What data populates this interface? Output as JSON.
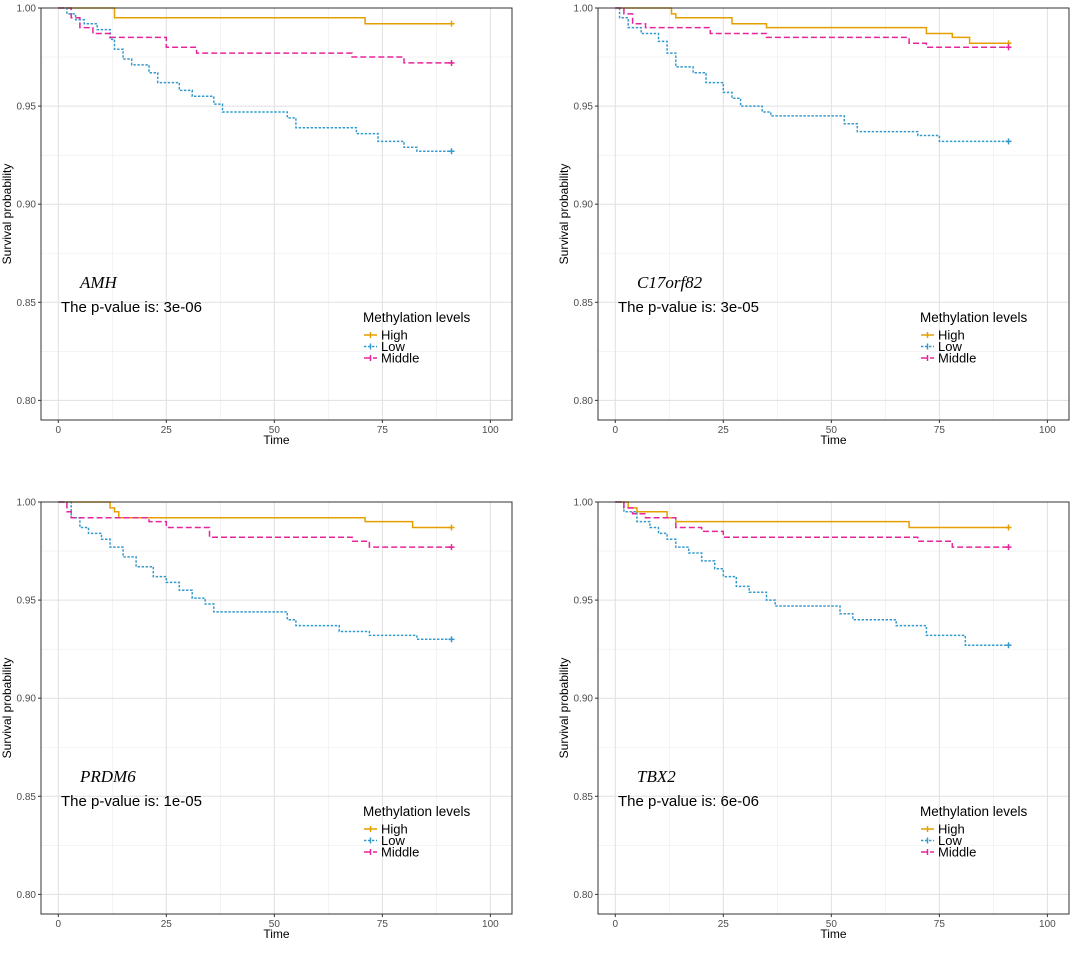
{
  "chart_data": [
    {
      "type": "line",
      "gene": "AMH",
      "pvalue_text": "The p-value is: 3e-06",
      "xlabel": "Time",
      "ylabel": "Survival probability",
      "xlim": [
        -4,
        105
      ],
      "ylim": [
        0.79,
        1.0
      ],
      "xticks": [
        0,
        25,
        50,
        75,
        100
      ],
      "yticks": [
        0.8,
        0.85,
        0.9,
        0.95,
        1.0
      ],
      "ytick_labels": [
        "0.80",
        "0.85",
        "0.90",
        "0.95",
        "1.00"
      ],
      "grid": true,
      "legend": {
        "title": "Methylation levels",
        "position": "bottom-right"
      },
      "series": [
        {
          "name": "High",
          "color": "#E69F00",
          "dash": "solid",
          "steps": [
            [
              0,
              1.0
            ],
            [
              13,
              0.995
            ],
            [
              71,
              0.992
            ]
          ],
          "end": 91
        },
        {
          "name": "Low",
          "color": "#3399CC",
          "dash": "dotted",
          "steps": [
            [
              0,
              1.0
            ],
            [
              2,
              0.997
            ],
            [
              4,
              0.994
            ],
            [
              6,
              0.992
            ],
            [
              9,
              0.989
            ],
            [
              12,
              0.984
            ],
            [
              13,
              0.979
            ],
            [
              15,
              0.974
            ],
            [
              17,
              0.971
            ],
            [
              21,
              0.967
            ],
            [
              23,
              0.962
            ],
            [
              28,
              0.958
            ],
            [
              31,
              0.955
            ],
            [
              36,
              0.951
            ],
            [
              38,
              0.947
            ],
            [
              53,
              0.944
            ],
            [
              55,
              0.939
            ],
            [
              69,
              0.936
            ],
            [
              74,
              0.932
            ],
            [
              80,
              0.929
            ],
            [
              83,
              0.927
            ]
          ],
          "end": 91
        },
        {
          "name": "Middle",
          "color": "#E6249B",
          "dash": "dashed",
          "steps": [
            [
              0,
              1.0
            ],
            [
              3,
              0.995
            ],
            [
              5,
              0.99
            ],
            [
              8,
              0.987
            ],
            [
              12,
              0.985
            ],
            [
              25,
              0.98
            ],
            [
              32,
              0.977
            ],
            [
              68,
              0.975
            ],
            [
              80,
              0.972
            ]
          ],
          "end": 91
        }
      ]
    },
    {
      "type": "line",
      "gene": "C17orf82",
      "pvalue_text": "The p-value is: 3e-05",
      "xlabel": "Time",
      "ylabel": "Survival probability",
      "xlim": [
        -4,
        105
      ],
      "ylim": [
        0.79,
        1.0
      ],
      "xticks": [
        0,
        25,
        50,
        75,
        100
      ],
      "yticks": [
        0.8,
        0.85,
        0.9,
        0.95,
        1.0
      ],
      "ytick_labels": [
        "0.80",
        "0.85",
        "0.90",
        "0.95",
        "1.00"
      ],
      "grid": true,
      "legend": {
        "title": "Methylation levels",
        "position": "bottom-right"
      },
      "series": [
        {
          "name": "High",
          "color": "#E69F00",
          "dash": "solid",
          "steps": [
            [
              0,
              1.0
            ],
            [
              13,
              0.997
            ],
            [
              14,
              0.995
            ],
            [
              27,
              0.992
            ],
            [
              35,
              0.99
            ],
            [
              72,
              0.987
            ],
            [
              78,
              0.985
            ],
            [
              82,
              0.982
            ]
          ],
          "end": 91
        },
        {
          "name": "Low",
          "color": "#3399CC",
          "dash": "dotted",
          "steps": [
            [
              0,
              1.0
            ],
            [
              1,
              0.995
            ],
            [
              3,
              0.99
            ],
            [
              6,
              0.987
            ],
            [
              10,
              0.983
            ],
            [
              12,
              0.977
            ],
            [
              14,
              0.97
            ],
            [
              18,
              0.967
            ],
            [
              21,
              0.962
            ],
            [
              25,
              0.957
            ],
            [
              27,
              0.954
            ],
            [
              29,
              0.95
            ],
            [
              34,
              0.947
            ],
            [
              36,
              0.945
            ],
            [
              53,
              0.941
            ],
            [
              56,
              0.937
            ],
            [
              70,
              0.935
            ],
            [
              75,
              0.932
            ]
          ],
          "end": 91
        },
        {
          "name": "Middle",
          "color": "#E6249B",
          "dash": "dashed",
          "steps": [
            [
              0,
              1.0
            ],
            [
              2,
              0.997
            ],
            [
              4,
              0.992
            ],
            [
              7,
              0.99
            ],
            [
              22,
              0.987
            ],
            [
              35,
              0.985
            ],
            [
              68,
              0.982
            ],
            [
              72,
              0.98
            ]
          ],
          "end": 91
        }
      ]
    },
    {
      "type": "line",
      "gene": "PRDM6",
      "pvalue_text": "The p-value is: 1e-05",
      "xlabel": "Time",
      "ylabel": "Survival probability",
      "xlim": [
        -4,
        105
      ],
      "ylim": [
        0.79,
        1.0
      ],
      "xticks": [
        0,
        25,
        50,
        75,
        100
      ],
      "yticks": [
        0.8,
        0.85,
        0.9,
        0.95,
        1.0
      ],
      "ytick_labels": [
        "0.80",
        "0.85",
        "0.90",
        "0.95",
        "1.00"
      ],
      "grid": true,
      "legend": {
        "title": "Methylation levels",
        "position": "bottom-right"
      },
      "series": [
        {
          "name": "High",
          "color": "#E69F00",
          "dash": "solid",
          "steps": [
            [
              0,
              1.0
            ],
            [
              12,
              0.997
            ],
            [
              13,
              0.995
            ],
            [
              14,
              0.992
            ],
            [
              71,
              0.99
            ],
            [
              82,
              0.987
            ]
          ],
          "end": 91
        },
        {
          "name": "Low",
          "color": "#3399CC",
          "dash": "dotted",
          "steps": [
            [
              0,
              1.0
            ],
            [
              3,
              0.992
            ],
            [
              5,
              0.987
            ],
            [
              7,
              0.984
            ],
            [
              10,
              0.981
            ],
            [
              12,
              0.977
            ],
            [
              15,
              0.972
            ],
            [
              18,
              0.967
            ],
            [
              22,
              0.962
            ],
            [
              25,
              0.959
            ],
            [
              28,
              0.955
            ],
            [
              31,
              0.951
            ],
            [
              34,
              0.948
            ],
            [
              36,
              0.944
            ],
            [
              53,
              0.94
            ],
            [
              55,
              0.937
            ],
            [
              65,
              0.934
            ],
            [
              72,
              0.932
            ],
            [
              83,
              0.93
            ]
          ],
          "end": 91
        },
        {
          "name": "Middle",
          "color": "#E6249B",
          "dash": "dashed",
          "steps": [
            [
              0,
              1.0
            ],
            [
              2,
              0.995
            ],
            [
              3,
              0.992
            ],
            [
              21,
              0.99
            ],
            [
              25,
              0.987
            ],
            [
              35,
              0.982
            ],
            [
              68,
              0.98
            ],
            [
              72,
              0.977
            ]
          ],
          "end": 91
        }
      ]
    },
    {
      "type": "line",
      "gene": "TBX2",
      "pvalue_text": "The p-value is: 6e-06",
      "xlabel": "Time",
      "ylabel": "Survival probability",
      "xlim": [
        -4,
        105
      ],
      "ylim": [
        0.79,
        1.0
      ],
      "xticks": [
        0,
        25,
        50,
        75,
        100
      ],
      "yticks": [
        0.8,
        0.85,
        0.9,
        0.95,
        1.0
      ],
      "ytick_labels": [
        "0.80",
        "0.85",
        "0.90",
        "0.95",
        "1.00"
      ],
      "grid": true,
      "legend": {
        "title": "Methylation levels",
        "position": "bottom-right"
      },
      "series": [
        {
          "name": "High",
          "color": "#E69F00",
          "dash": "solid",
          "steps": [
            [
              0,
              1.0
            ],
            [
              3,
              0.997
            ],
            [
              5,
              0.995
            ],
            [
              12,
              0.992
            ],
            [
              14,
              0.99
            ],
            [
              68,
              0.987
            ]
          ],
          "end": 91
        },
        {
          "name": "Low",
          "color": "#3399CC",
          "dash": "dotted",
          "steps": [
            [
              0,
              1.0
            ],
            [
              2,
              0.995
            ],
            [
              5,
              0.99
            ],
            [
              8,
              0.987
            ],
            [
              10,
              0.984
            ],
            [
              12,
              0.981
            ],
            [
              14,
              0.977
            ],
            [
              17,
              0.974
            ],
            [
              20,
              0.97
            ],
            [
              23,
              0.966
            ],
            [
              25,
              0.962
            ],
            [
              28,
              0.957
            ],
            [
              31,
              0.954
            ],
            [
              35,
              0.95
            ],
            [
              37,
              0.947
            ],
            [
              52,
              0.943
            ],
            [
              55,
              0.94
            ],
            [
              65,
              0.937
            ],
            [
              72,
              0.932
            ],
            [
              81,
              0.927
            ]
          ],
          "end": 91
        },
        {
          "name": "Middle",
          "color": "#E6249B",
          "dash": "dashed",
          "steps": [
            [
              0,
              1.0
            ],
            [
              2,
              0.997
            ],
            [
              4,
              0.994
            ],
            [
              7,
              0.992
            ],
            [
              14,
              0.987
            ],
            [
              20,
              0.985
            ],
            [
              25,
              0.982
            ],
            [
              70,
              0.98
            ],
            [
              78,
              0.977
            ]
          ],
          "end": 91
        }
      ]
    }
  ]
}
